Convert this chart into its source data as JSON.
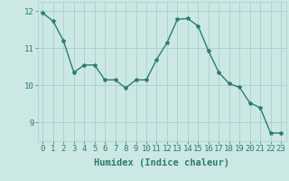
{
  "x": [
    0,
    1,
    2,
    3,
    4,
    5,
    6,
    7,
    8,
    9,
    10,
    11,
    12,
    13,
    14,
    15,
    16,
    17,
    18,
    19,
    20,
    21,
    22,
    23
  ],
  "y": [
    11.95,
    11.73,
    11.2,
    10.35,
    10.55,
    10.55,
    10.15,
    10.15,
    9.93,
    10.15,
    10.15,
    10.7,
    11.15,
    11.78,
    11.8,
    11.6,
    10.93,
    10.35,
    10.05,
    9.95,
    9.53,
    9.4,
    8.72,
    8.72
  ],
  "line_color": "#2a7d6e",
  "marker": "*",
  "marker_size": 3,
  "bg_color": "#cce8e4",
  "grid_color": "#aacfcb",
  "xlabel": "Humidex (Indice chaleur)",
  "xlim": [
    -0.5,
    23.5
  ],
  "ylim": [
    8.5,
    12.25
  ],
  "yticks": [
    9,
    10,
    11,
    12
  ],
  "xticks": [
    0,
    1,
    2,
    3,
    4,
    5,
    6,
    7,
    8,
    9,
    10,
    11,
    12,
    13,
    14,
    15,
    16,
    17,
    18,
    19,
    20,
    21,
    22,
    23
  ],
  "tick_fontsize": 6.5,
  "xlabel_fontsize": 7.5,
  "line_width": 1.0
}
